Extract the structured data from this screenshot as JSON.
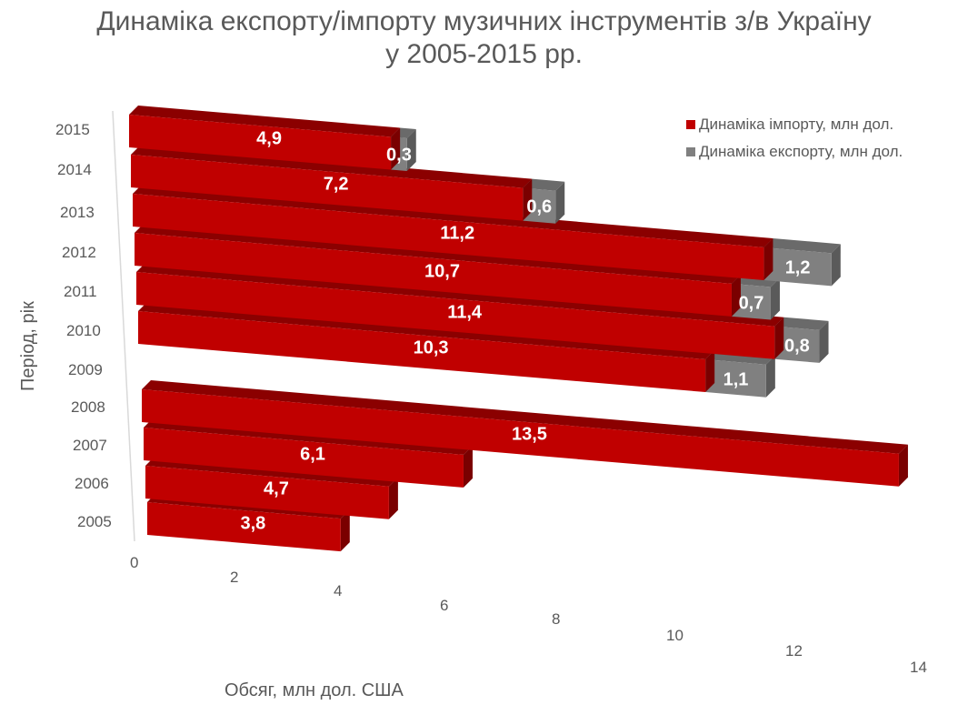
{
  "title": {
    "line1": "Динаміка експорту/імпорту музичних інструментів з/в Україну",
    "line2": "у 2005-2015 рр."
  },
  "legend": [
    {
      "label": "Динаміка імпорту, млн дол.",
      "color": "#c00000"
    },
    {
      "label": "Динаміка експорту, млн дол.",
      "color": "#808080"
    }
  ],
  "axes": {
    "y_title": "Період, рік",
    "x_title": "Обсяг, млн дол. США",
    "y_ticks": [
      "2015",
      "2014",
      "2013",
      "2012",
      "2011",
      "2010",
      "2009",
      "2008",
      "2007",
      "2006",
      "2005"
    ],
    "x_ticks": [
      "0",
      "2",
      "4",
      "6",
      "8",
      "10",
      "12",
      "14"
    ]
  },
  "chart_data": {
    "type": "bar",
    "orientation": "horizontal",
    "stacked": true,
    "style": "3d-perspective",
    "title": "Динаміка експорту/імпорту музичних інструментів з/в Україну у 2005-2015 рр.",
    "xlabel": "Обсяг, млн дол. США",
    "ylabel": "Період, рік",
    "xlim": [
      0,
      14
    ],
    "legend_position": "top-right",
    "categories": [
      "2015",
      "2014",
      "2013",
      "2012",
      "2011",
      "2010",
      "2009",
      "2008",
      "2007",
      "2006",
      "2005"
    ],
    "series": [
      {
        "name": "Динаміка імпорту, млн дол.",
        "color": "#c00000",
        "values": [
          4.9,
          7.2,
          11.2,
          10.7,
          11.4,
          10.3,
          null,
          13.5,
          6.1,
          4.7,
          3.8
        ],
        "labels": [
          "4,9",
          "7,2",
          "11,2",
          "10,7",
          "11,4",
          "10,3",
          "",
          "13,5",
          "6,1",
          "4,7",
          "3,8"
        ]
      },
      {
        "name": "Динаміка експорту, млн дол.",
        "color": "#808080",
        "values": [
          0.3,
          0.6,
          1.2,
          0.7,
          0.8,
          1.1,
          null,
          null,
          null,
          null,
          null
        ],
        "labels": [
          "0,3",
          "0,6",
          "1,2",
          "0,7",
          "0,8",
          "1,1",
          "",
          "",
          "",
          "",
          ""
        ]
      }
    ]
  },
  "colors": {
    "import_front": "#c00000",
    "import_top": "#8b0000",
    "import_side": "#7a0000",
    "export_front": "#808080",
    "export_top": "#6a6a6a",
    "export_side": "#5a5a5a",
    "text": "#595959"
  }
}
